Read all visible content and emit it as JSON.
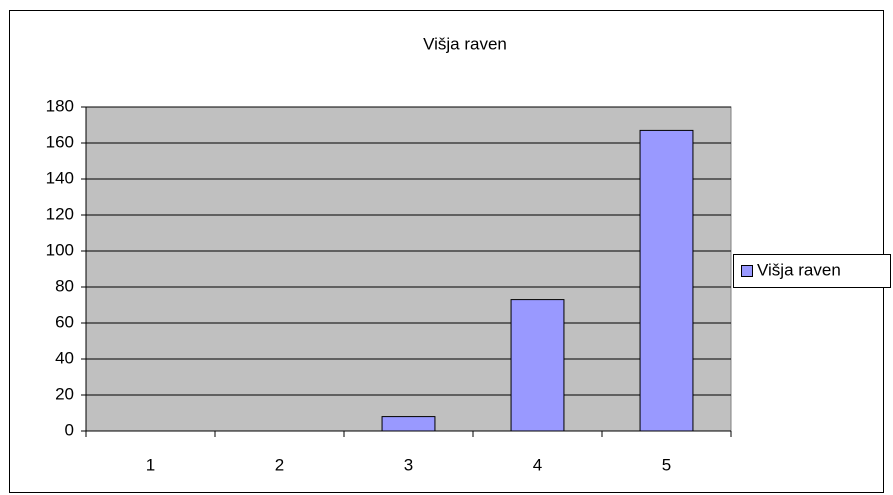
{
  "chart_data": {
    "type": "bar",
    "title": "Višja raven",
    "categories": [
      "1",
      "2",
      "3",
      "4",
      "5"
    ],
    "series": [
      {
        "name": "Višja raven",
        "color": "#9999ff",
        "values": [
          0,
          0,
          8,
          73,
          167
        ]
      }
    ],
    "ylim": [
      0,
      180
    ],
    "yticks": [
      0,
      20,
      40,
      60,
      80,
      100,
      120,
      140,
      160,
      180
    ],
    "grid": true,
    "legend": "right"
  }
}
